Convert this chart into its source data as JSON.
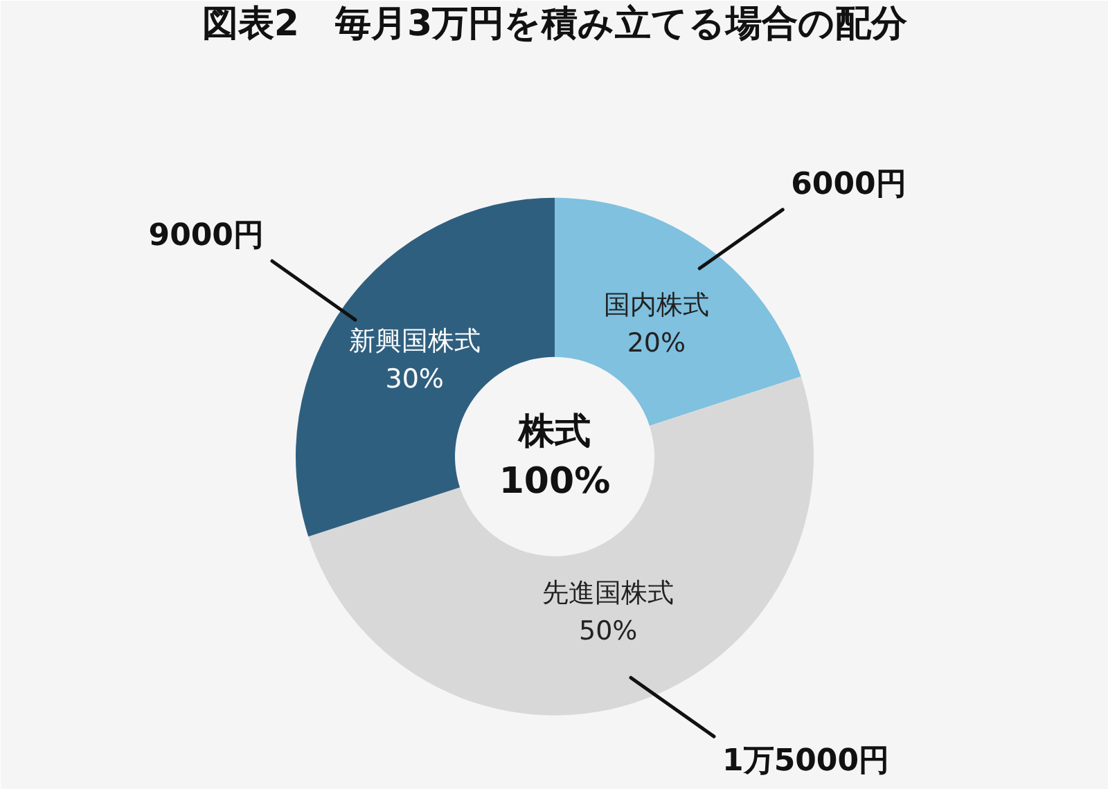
{
  "chart_data": {
    "type": "donut",
    "title": "図表2　毎月3万円を積み立てる場合の配分",
    "categories": [
      "国内株式",
      "先進国株式",
      "新興国株式"
    ],
    "values": [
      20,
      50,
      30
    ],
    "colors": [
      "#7fc1df",
      "#d9d8d9",
      "#2f5f7f"
    ],
    "value_labels": [
      "20%",
      "50%",
      "30%"
    ],
    "annotations": [
      {
        "text": "6000円",
        "x": "国内株式"
      },
      {
        "text": "1万5000円",
        "x": "先進国株式"
      },
      {
        "text": "9000円",
        "x": "新興国株式"
      },
      "株式\n100%"
    ]
  }
}
